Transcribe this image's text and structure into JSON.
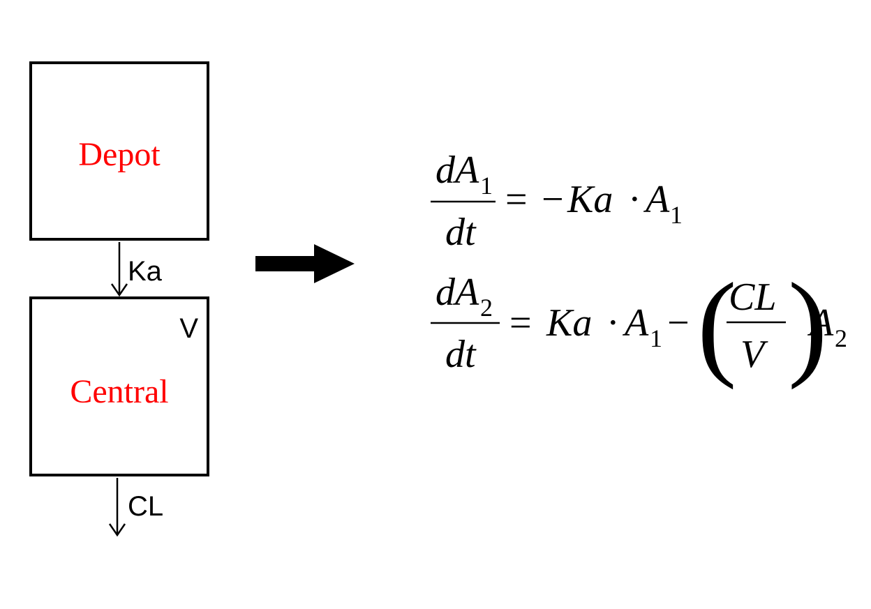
{
  "diagram": {
    "compartments": {
      "depot": {
        "label": "Depot",
        "color": "#ff0000"
      },
      "central": {
        "label": "Central",
        "color": "#ff0000",
        "volume_label": "V"
      }
    },
    "flows": {
      "absorption_label": "Ka",
      "elimination_label": "CL"
    },
    "equations": {
      "eq1": {
        "d": "d",
        "var": "A",
        "var_sub": "1",
        "dt": "dt",
        "equals": "=",
        "rhs_sign": "−",
        "rate": "Ka",
        "dot": "·",
        "rhs_var": "A",
        "rhs_sub": "1"
      },
      "eq2": {
        "d": "d",
        "var": "A",
        "var_sub": "2",
        "dt": "dt",
        "equals": "=",
        "rate": "Ka",
        "dot": "·",
        "rhs_var1": "A",
        "rhs_sub1": "1",
        "minus": "−",
        "open_paren": "(",
        "frac_num": "CL",
        "frac_den": "V",
        "close_paren": ")",
        "rhs_var2": "A",
        "rhs_sub2": "2"
      }
    }
  }
}
